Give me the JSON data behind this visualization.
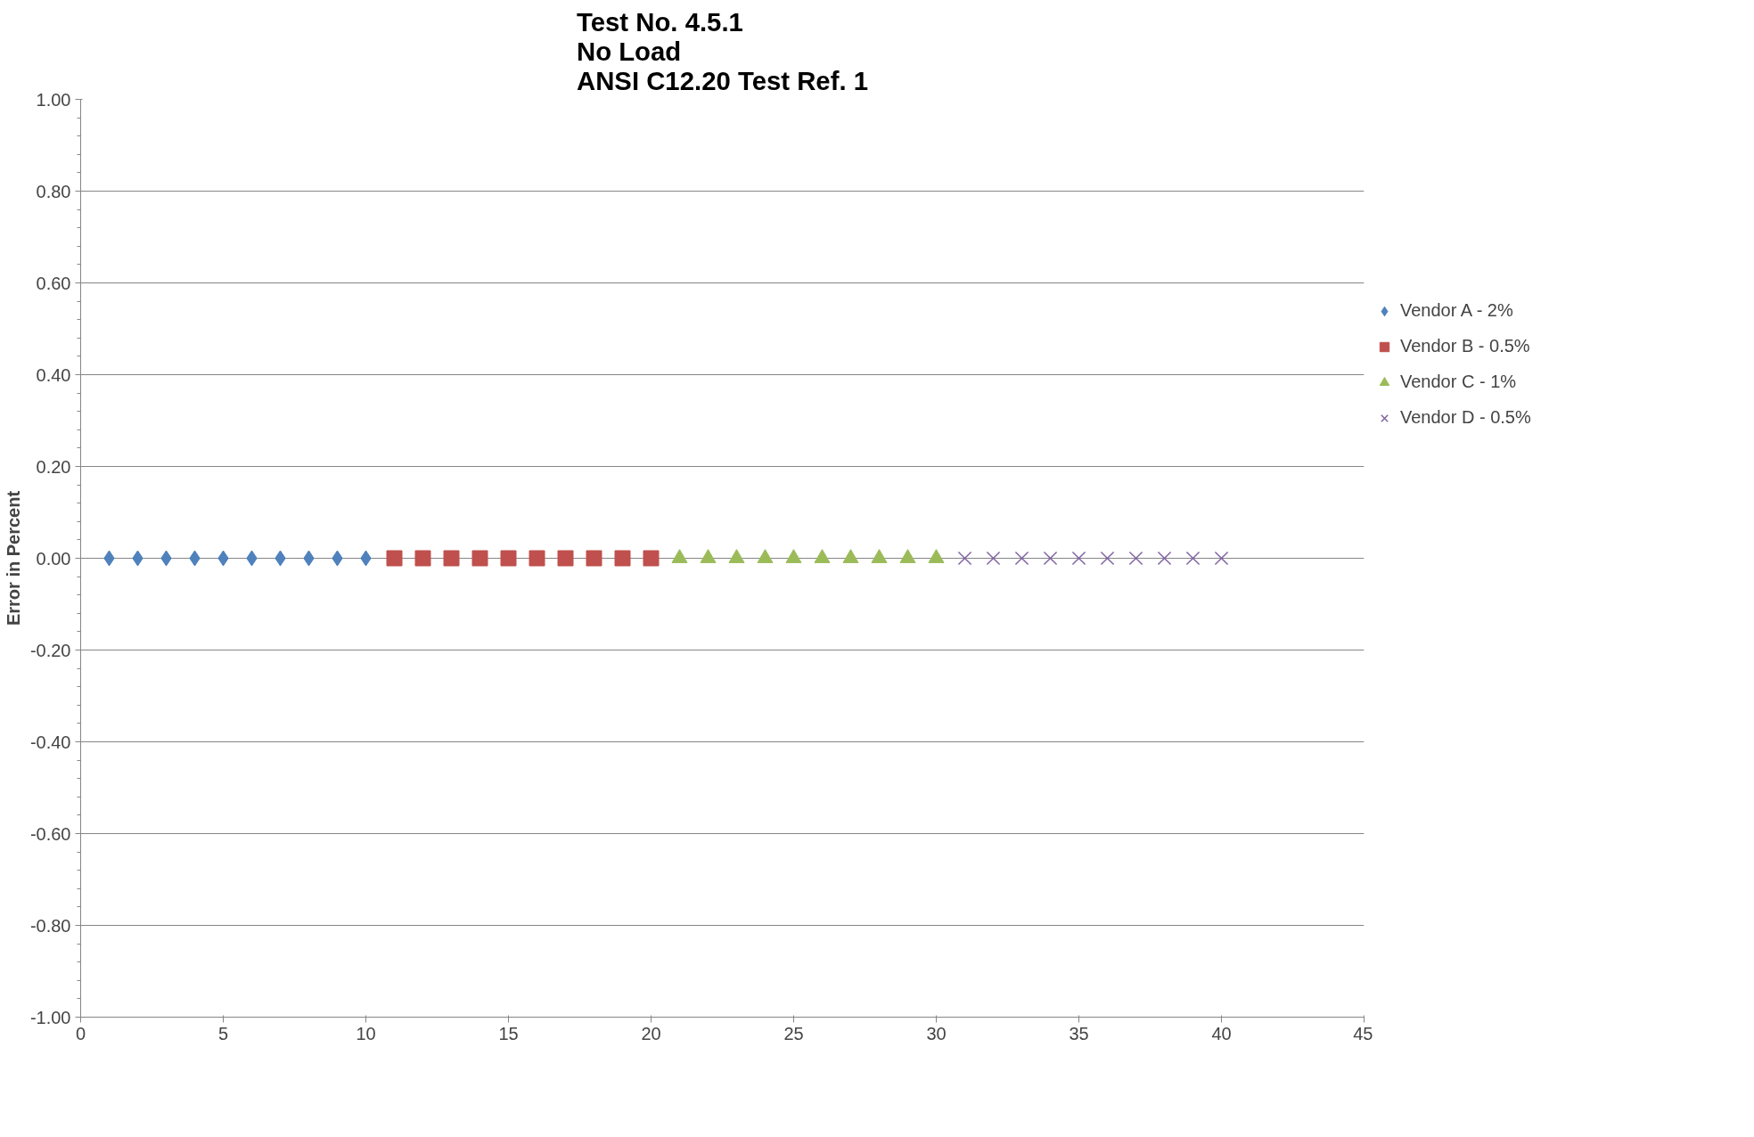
{
  "chart_data": {
    "type": "scatter",
    "title": "Test No. 4.5.1\nNo Load\nANSI C12.20 Test Ref. 1",
    "ylabel": "Error in Percent",
    "xlim": [
      0,
      45
    ],
    "xticks": [
      0,
      5,
      10,
      15,
      20,
      25,
      30,
      35,
      40,
      45
    ],
    "ylim": [
      -1,
      1
    ],
    "yticks": [
      {
        "value": -1,
        "label": "-1.00"
      },
      {
        "value": -0.8,
        "label": "-0.80"
      },
      {
        "value": -0.6,
        "label": "-0.60"
      },
      {
        "value": -0.4,
        "label": "-0.40"
      },
      {
        "value": -0.2,
        "label": "-0.20"
      },
      {
        "value": 0,
        "label": "0.00"
      },
      {
        "value": 0.2,
        "label": "0.20"
      },
      {
        "value": 0.4,
        "label": "0.40"
      },
      {
        "value": 0.6,
        "label": "0.60"
      },
      {
        "value": 0.8,
        "label": "0.80"
      },
      {
        "value": 1,
        "label": "1.00"
      }
    ],
    "grid": "y",
    "legend": "right",
    "series": [
      {
        "name": "Vendor A - 2%",
        "color": "#4f81bd",
        "marker": "diamond",
        "x": [
          1,
          2,
          3,
          4,
          5,
          6,
          7,
          8,
          9,
          10
        ],
        "values": [
          0,
          0,
          0,
          0,
          0,
          0,
          0,
          0,
          0,
          0
        ]
      },
      {
        "name": "Vendor B - 0.5%",
        "color": "#c0504d",
        "marker": "square",
        "x": [
          11,
          12,
          13,
          14,
          15,
          16,
          17,
          18,
          19,
          20
        ],
        "values": [
          0,
          0,
          0,
          0,
          0,
          0,
          0,
          0,
          0,
          0
        ]
      },
      {
        "name": "Vendor C - 1%",
        "color": "#9bbb59",
        "marker": "triangle",
        "x": [
          21,
          22,
          23,
          24,
          25,
          26,
          27,
          28,
          29,
          30
        ],
        "values": [
          0,
          0,
          0,
          0,
          0,
          0,
          0,
          0,
          0,
          0
        ]
      },
      {
        "name": "Vendor D - 0.5%",
        "color": "#8064a2",
        "marker": "cross",
        "x": [
          31,
          32,
          33,
          34,
          35,
          36,
          37,
          38,
          39,
          40
        ],
        "values": [
          0,
          0,
          0,
          0,
          0,
          0,
          0,
          0,
          0,
          0
        ]
      }
    ]
  }
}
